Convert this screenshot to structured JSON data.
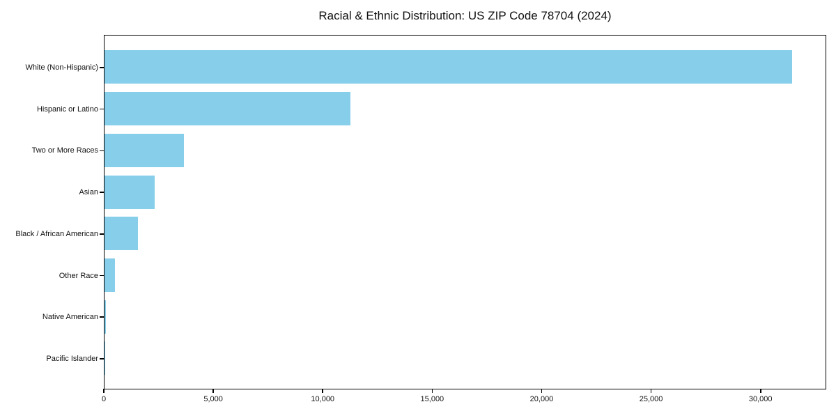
{
  "chart_data": {
    "type": "bar",
    "orientation": "horizontal",
    "title": "Racial & Ethnic Distribution: US ZIP Code 78704 (2024)",
    "categories": [
      "White (Non-Hispanic)",
      "Hispanic or Latino",
      "Two or More Races",
      "Asian",
      "Black / African American",
      "Other Race",
      "Native American",
      "Pacific Islander"
    ],
    "values": [
      31400,
      11230,
      3630,
      2290,
      1530,
      480,
      50,
      20
    ],
    "xlabel": "",
    "ylabel": "",
    "xlim": [
      0,
      33000
    ],
    "xticks": [
      0,
      5000,
      10000,
      15000,
      20000,
      25000,
      30000
    ],
    "xtick_labels": [
      "0",
      "5,000",
      "10,000",
      "15,000",
      "20,000",
      "25,000",
      "30,000"
    ],
    "bar_color": "#87CEEB",
    "frame_color": "#000000",
    "background": "#FFFFFF",
    "grid": false,
    "legend": false
  }
}
